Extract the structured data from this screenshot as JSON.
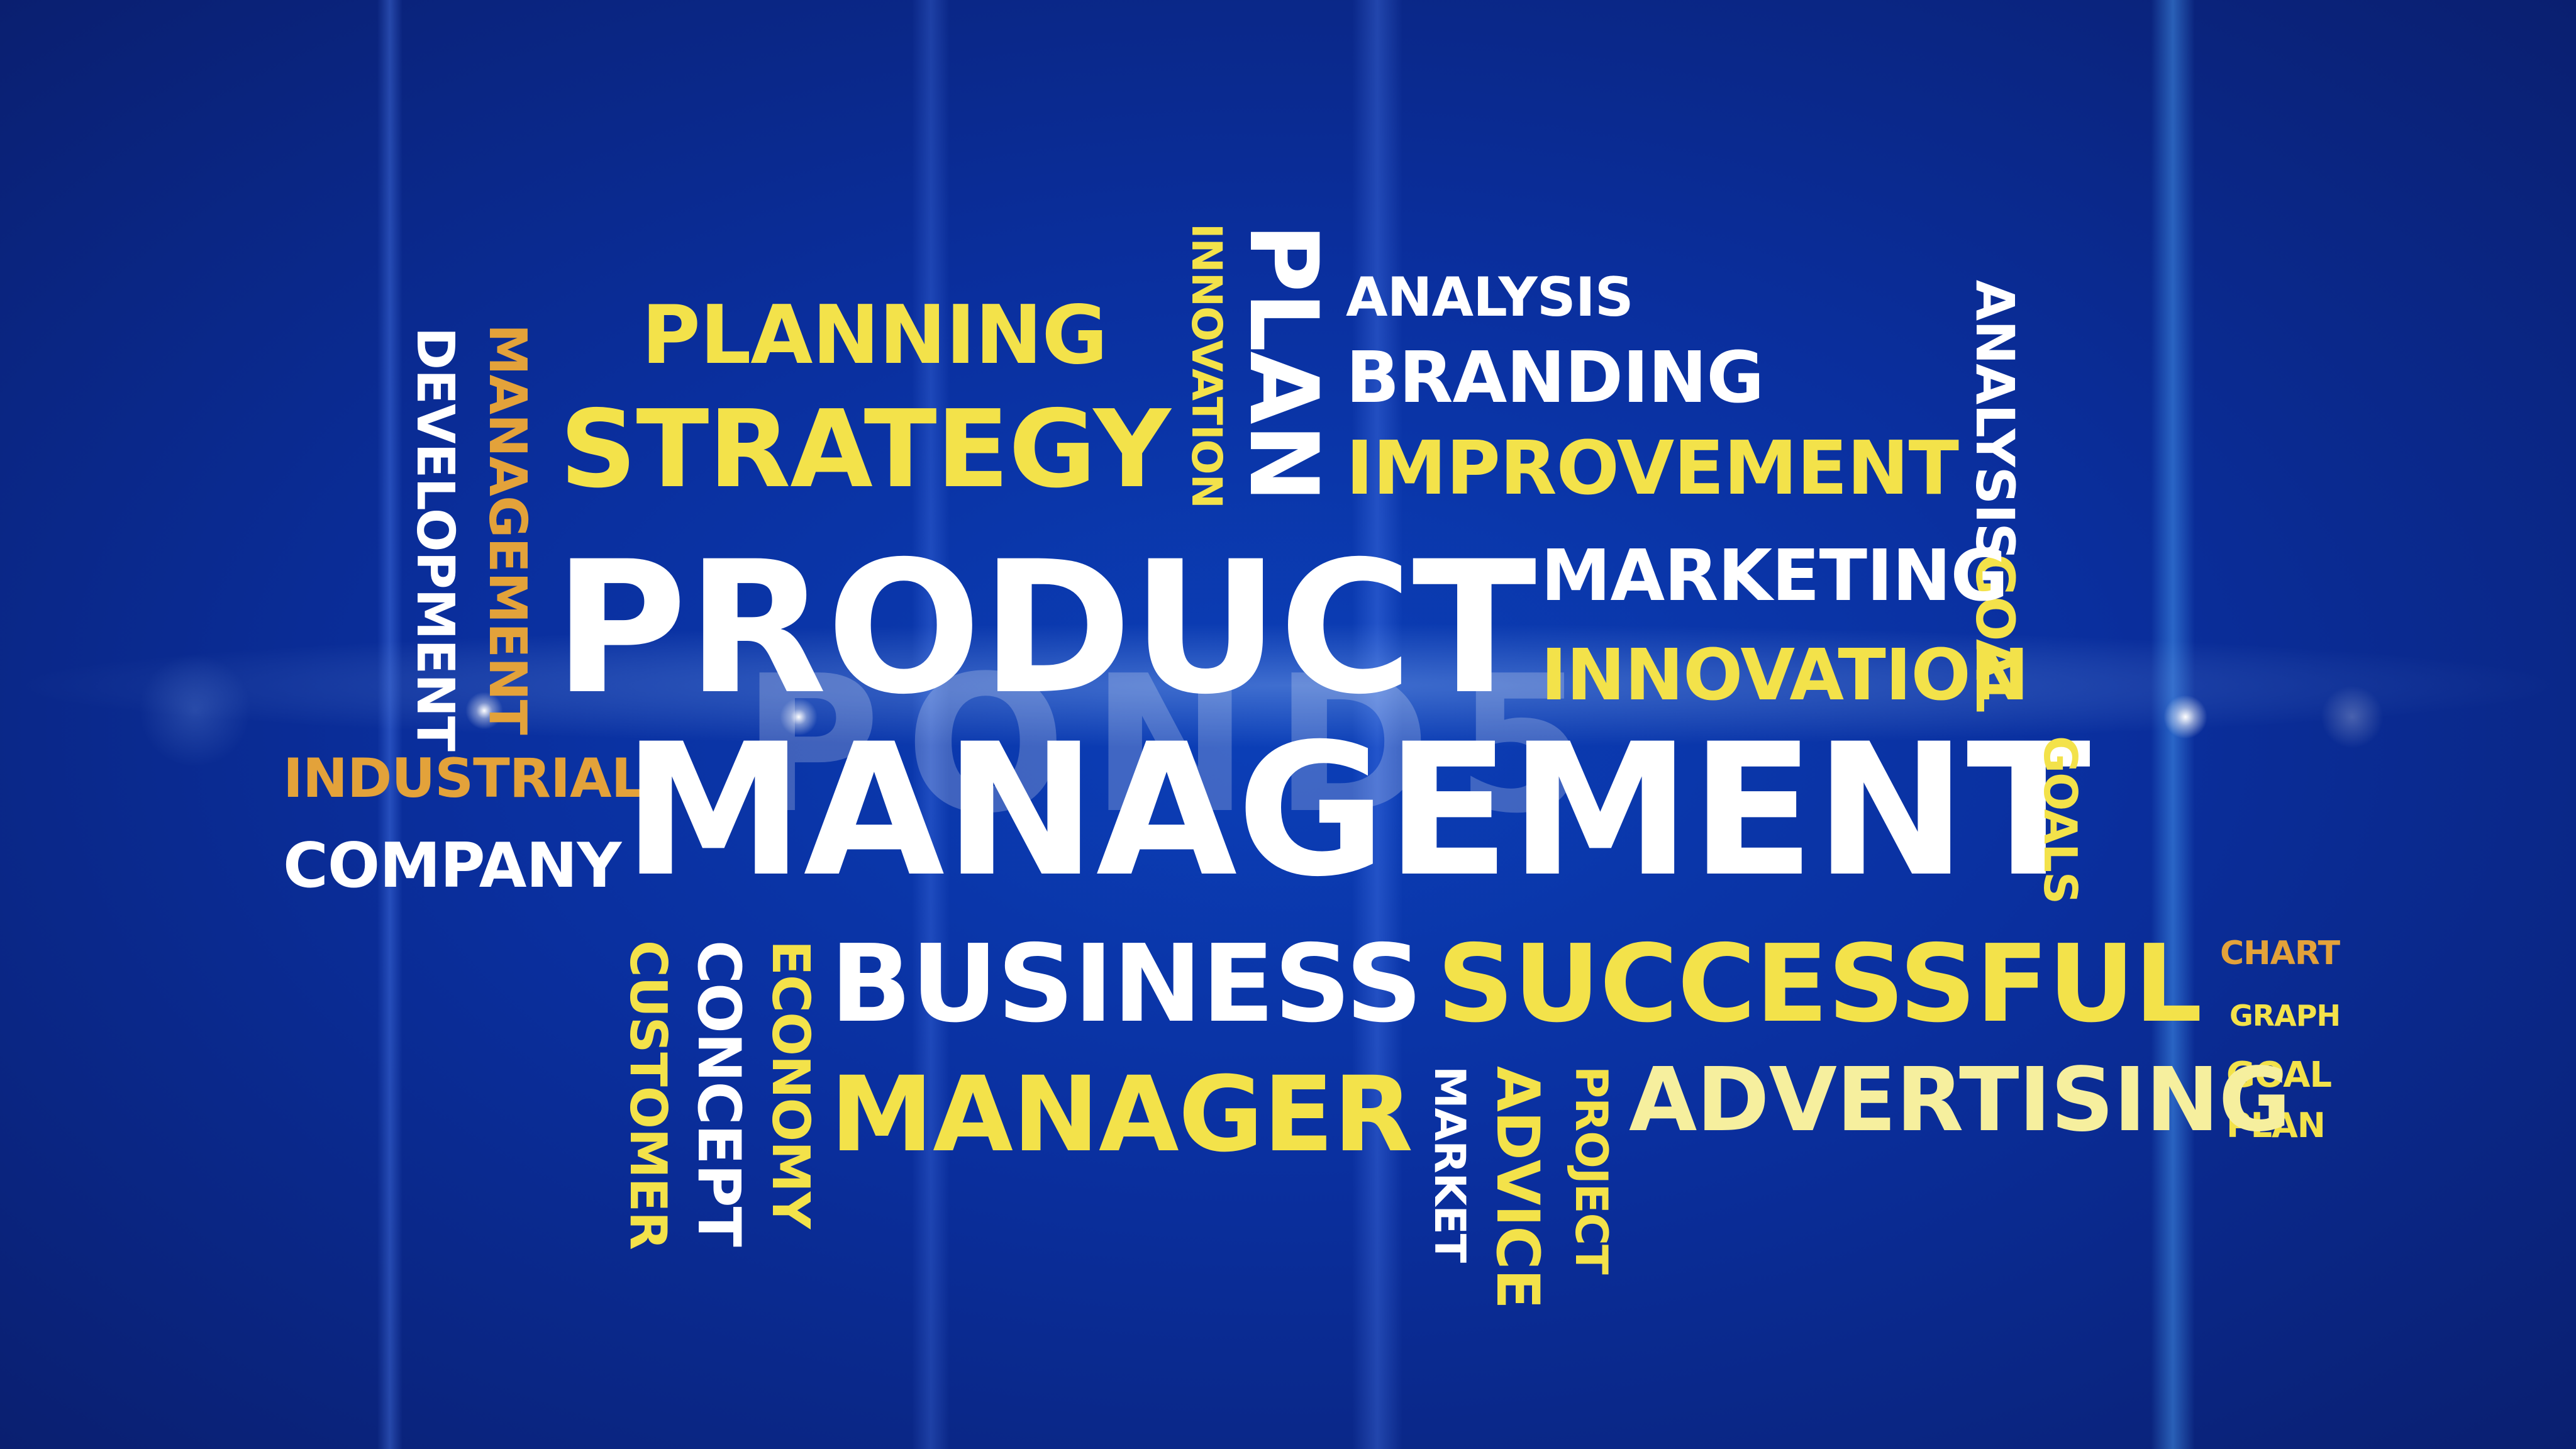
{
  "colors": {
    "background": "#0b35a8",
    "white": "#ffffff",
    "yellow": "#f3e24a",
    "gold": "#e3a23a"
  },
  "words": {
    "product": "PRODUCT",
    "management": "MANAGEMENT",
    "planning": "PLANNING",
    "strategy": "STRATEGY",
    "development": "DEVELOPMENT",
    "management_vertical": "MANAGEMENT",
    "innovation_vertical": "INNOVATION",
    "plan_vertical": "PLAN",
    "analysis": "ANALYSIS",
    "branding": "BRANDING",
    "improvement": "IMPROVEMENT",
    "analysis_vertical": "ANALYSIS",
    "goal_vertical": "GOAL",
    "marketing": "MARKETING",
    "innovation": "INNOVATION",
    "industrial": "INDUSTRIAL",
    "company": "COMPANY",
    "goals_vertical": "GOALS",
    "business": "BUSINESS",
    "successful": "SUCCESSFUL",
    "chart": "CHART",
    "graph": "GRAPH",
    "goal": "GOAL",
    "plan": "PLAN",
    "customer": "CUSTOMER",
    "concept": "CONCEPT",
    "economy": "ECONOMY",
    "manager": "MANAGER",
    "market": "MARKET",
    "advice": "ADVICE",
    "project": "PROJECT",
    "advertising": "ADVERTISING"
  },
  "watermark": "POND5"
}
